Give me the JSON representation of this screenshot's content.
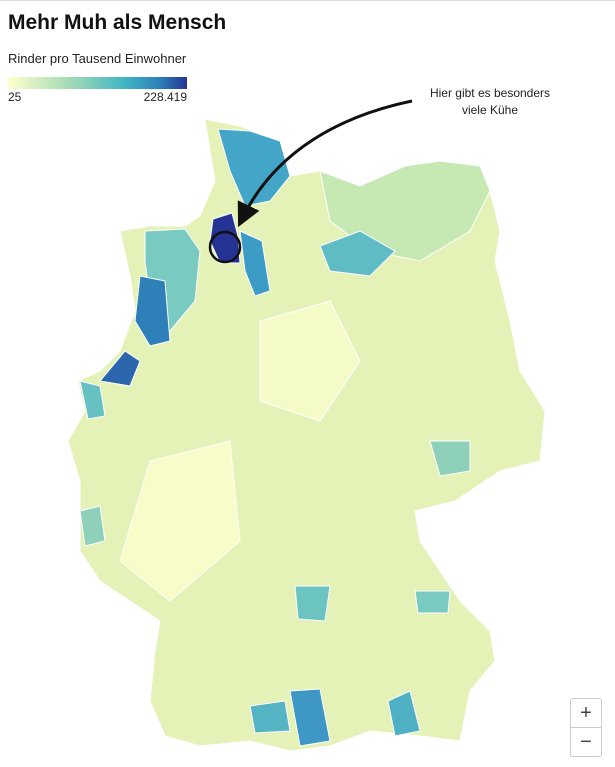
{
  "header": {
    "title": "Mehr Muh als Mensch",
    "subtitle": "Rinder pro Tausend Einwohner"
  },
  "legend": {
    "min": 25,
    "max": 228.419
  },
  "annotation": {
    "lines": [
      "Hier gibt es besonders",
      "viele Kühe"
    ]
  },
  "zoom": {
    "in": "+",
    "out": "−"
  }
}
